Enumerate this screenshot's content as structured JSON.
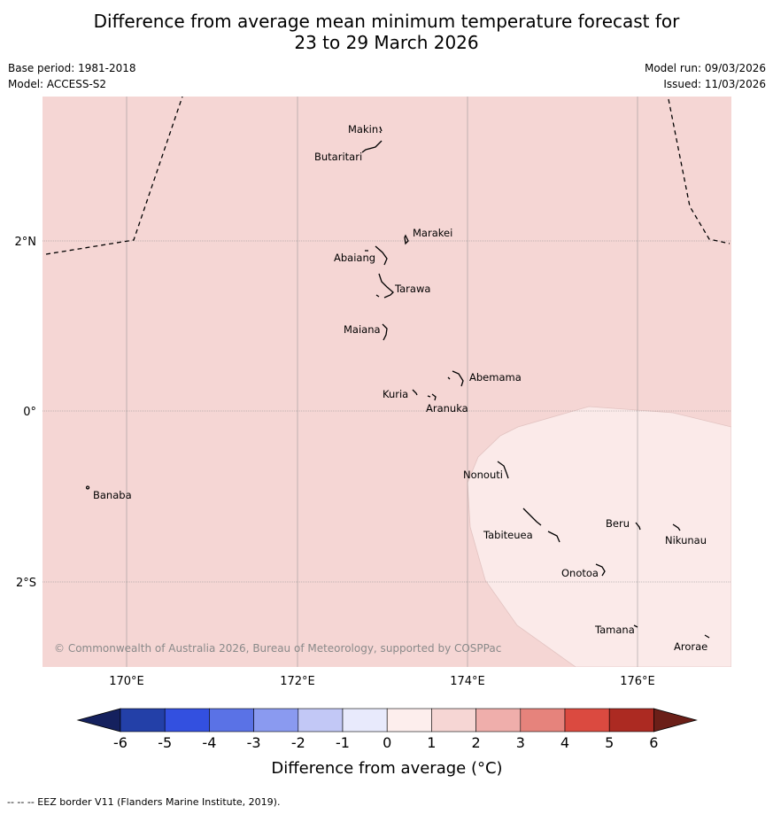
{
  "header": {
    "title_line1": "Difference from average mean minimum temperature forecast for",
    "title_line2": "23 to 29 March 2026",
    "base_period": "Base period: 1981-2018",
    "model": "Model: ACCESS-S2",
    "model_run": "Model run: 09/03/2026",
    "issued": "Issued: 11/03/2026"
  },
  "map": {
    "region_fill_main": "#f5d6d4",
    "region_fill_low": "#fbeae9",
    "lat_labels": [
      "2°N",
      "0°",
      "2°S"
    ],
    "lon_labels": [
      "170°E",
      "172°E",
      "174°E",
      "176°E"
    ],
    "copyright": "© Commonwealth of Australia 2026, Bureau of Meteorology, supported by COSPPac",
    "places": [
      "Makin",
      "Butaritari",
      "Marakei",
      "Abaiang",
      "Tarawa",
      "Maiana",
      "Abemama",
      "Kuria",
      "Aranuka",
      "Banaba",
      "Nonouti",
      "Tabiteuea",
      "Beru",
      "Nikunau",
      "Onotoa",
      "Tamana",
      "Arorae"
    ]
  },
  "colorbar": {
    "ticks": [
      "-6",
      "-5",
      "-4",
      "-3",
      "-2",
      "-1",
      "0",
      "1",
      "2",
      "3",
      "4",
      "5",
      "6"
    ],
    "colors": [
      "#2340a8",
      "#3350e0",
      "#5a72e6",
      "#8a9af0",
      "#c2c8f6",
      "#e8eafc",
      "#fdeeed",
      "#f6d6d4",
      "#efaeab",
      "#e6837c",
      "#db4a40",
      "#ac2a22"
    ],
    "under_color": "#15215e",
    "over_color": "#6b1f18",
    "label": "Difference from average (°C)"
  },
  "footer": {
    "eez_note": "--  --  -- EEZ border V11 (Flanders Marine Institute, 2019)."
  }
}
